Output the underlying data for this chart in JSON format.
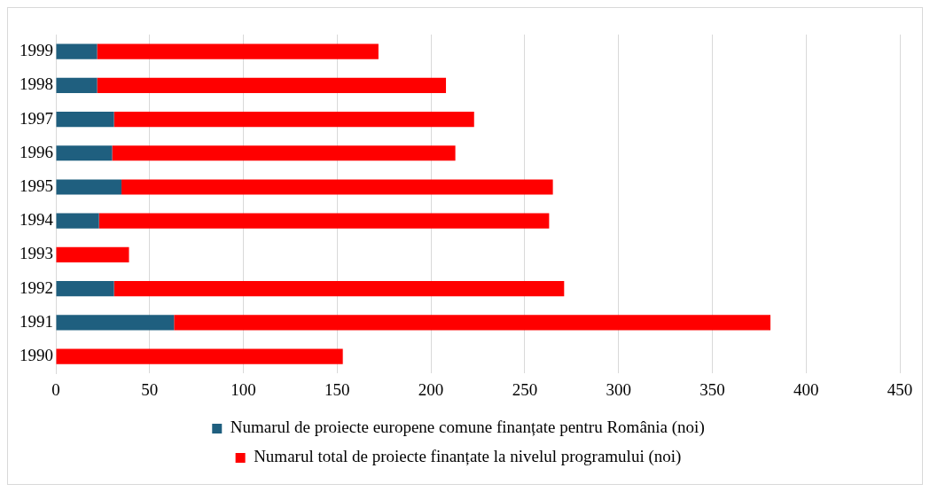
{
  "chart_data": {
    "type": "bar",
    "orientation": "horizontal",
    "stacked": true,
    "categories": [
      "1999",
      "1998",
      "1997",
      "1996",
      "1995",
      "1994",
      "1993",
      "1992",
      "1991",
      "1990"
    ],
    "series": [
      {
        "name": "Numarul de proiecte europene comune finanțate pentru România (noi)",
        "color": "#1f5f7f",
        "values": [
          22,
          22,
          31,
          30,
          35,
          23,
          0,
          31,
          63,
          0
        ]
      },
      {
        "name": "Numarul total de proiecte finanțate la nivelul programului (noi)",
        "color": "#ff0000",
        "values": [
          150,
          186,
          192,
          183,
          230,
          240,
          39,
          240,
          318,
          153
        ]
      }
    ],
    "xlim": [
      0,
      450
    ],
    "xticks": [
      0,
      50,
      100,
      150,
      200,
      250,
      300,
      350,
      400,
      450
    ],
    "grid": "x",
    "legend": "bottom"
  }
}
